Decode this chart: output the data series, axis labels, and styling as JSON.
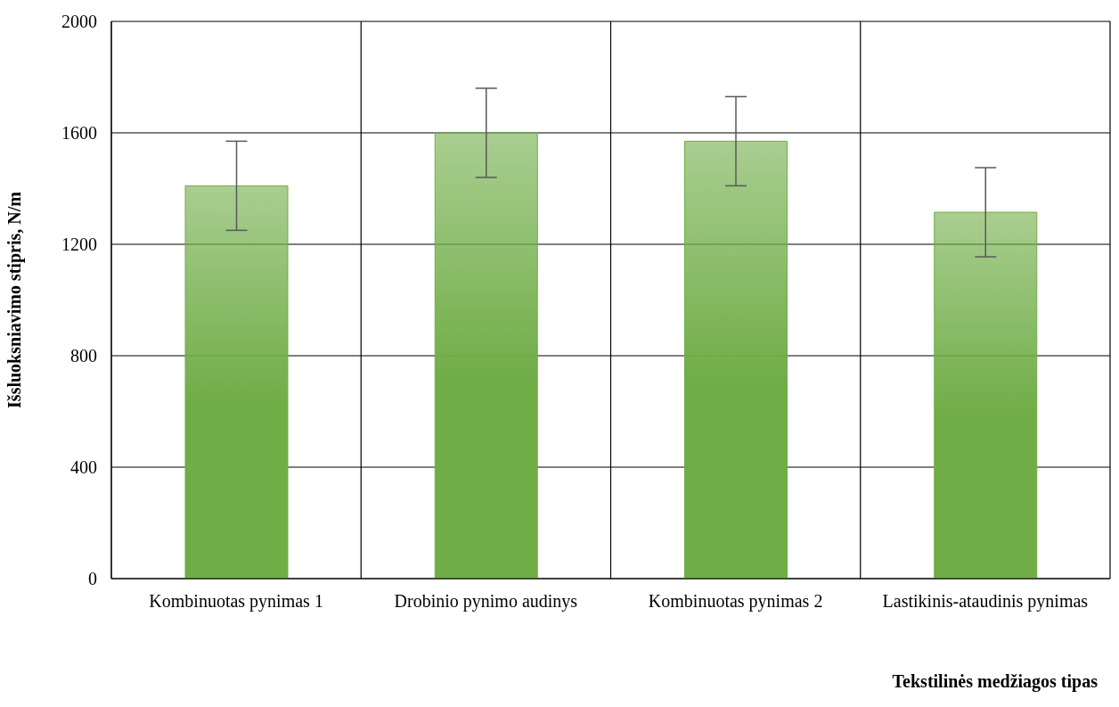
{
  "chart_data": {
    "type": "bar",
    "xlabel": "Tekstilinės medžiagos tipas",
    "ylabel": "Išsluoksniavimo stipris, N/m",
    "categories": [
      "Kombinuotas pynimas 1",
      "Drobinio pynimo audinys",
      "Kombinuotas pynimas 2",
      "Lastikinis-ataudinis pynimas"
    ],
    "values": [
      1410,
      1600,
      1570,
      1315
    ],
    "errors": [
      160,
      160,
      160,
      160
    ],
    "color": "#70ad47",
    "ylim": [
      0,
      2000
    ],
    "yticks": [
      0,
      400,
      800,
      1200,
      1600,
      2000
    ],
    "grid": true,
    "legend": false
  }
}
